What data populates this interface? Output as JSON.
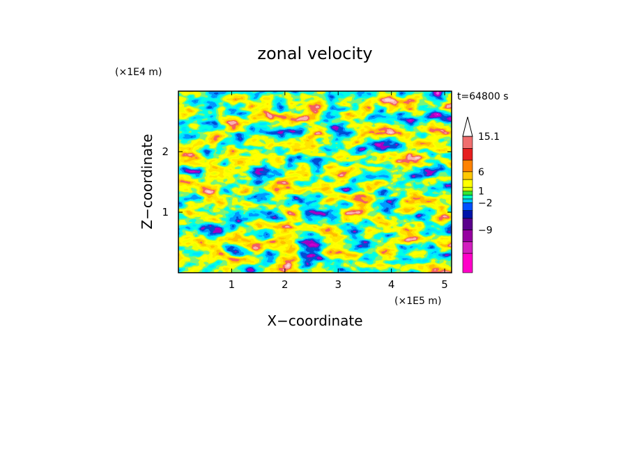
{
  "chart_data": {
    "type": "heatmap",
    "title": "zonal velocity",
    "xlabel": "X−coordinate",
    "ylabel": "Z−coordinate",
    "x_unit": "(×1E5 m)",
    "y_unit": "(×1E4 m)",
    "time_label": "t=64800 s",
    "xlim": [
      0,
      5.13
    ],
    "ylim": [
      0,
      3.0
    ],
    "x_ticks": [
      "1",
      "2",
      "3",
      "4",
      "5"
    ],
    "y_ticks": [
      "1",
      "2"
    ],
    "x_tick_values": [
      1,
      2,
      3,
      4,
      5
    ],
    "y_tick_values": [
      1,
      2
    ],
    "colorbar": {
      "labels": [
        "15.1",
        "6",
        "1",
        "−2",
        "−9"
      ],
      "label_values": [
        15.1,
        6,
        1,
        -2,
        -9
      ],
      "levels": [
        -20,
        -15,
        -12,
        -9,
        -6,
        -4,
        -2,
        -1,
        0,
        1,
        2,
        4,
        6,
        9,
        12,
        15.1
      ],
      "colors": [
        "#ff00c8",
        "#d21ebe",
        "#9600a0",
        "#5a008c",
        "#0014aa",
        "#0050ff",
        "#00c8ff",
        "#00ffc8",
        "#32e632",
        "#dcff00",
        "#ffff00",
        "#ffc800",
        "#ff8200",
        "#e61e1e",
        "#f06e6e",
        "#f5aaaa"
      ],
      "extend": "max"
    },
    "colors": {
      "frame": "#000000",
      "background": "#ffffff"
    }
  }
}
